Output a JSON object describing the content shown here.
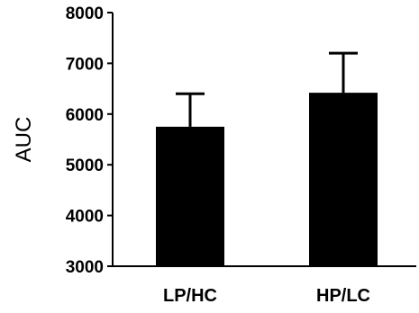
{
  "chart_data": {
    "type": "bar",
    "title": "",
    "xlabel": "",
    "ylabel": "AUC",
    "ylim": [
      3000,
      8000
    ],
    "yticks": [
      3000,
      4000,
      5000,
      6000,
      7000,
      8000
    ],
    "categories": [
      "LP/HC",
      "HP/LC"
    ],
    "series": [
      {
        "values": [
          5750,
          6420
        ],
        "error_upper": [
          650,
          780
        ]
      }
    ],
    "grid": false,
    "legend": "none",
    "bar_color": "#000000"
  }
}
